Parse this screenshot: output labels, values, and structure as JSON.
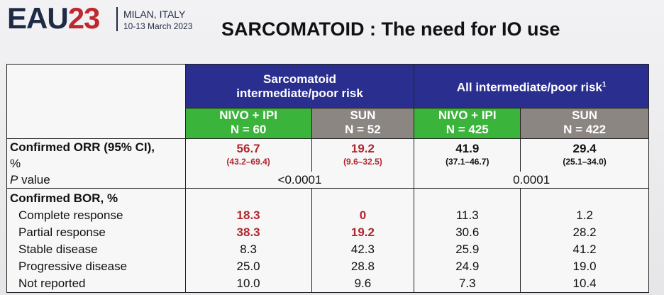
{
  "header": {
    "logo_text": "EAU",
    "logo_year": "23",
    "location": "MILAN, ITALY",
    "dates": "10-13 March 2023",
    "title": "SARCOMATOID : The need for IO use"
  },
  "table": {
    "group1": {
      "line1": "Sarcomatoid",
      "line2": "intermediate/poor risk"
    },
    "group2": {
      "label": "All intermediate/poor risk",
      "sup": "1"
    },
    "arms": [
      {
        "name": "NIVO + IPI",
        "n": "N = 60"
      },
      {
        "name": "SUN",
        "n": "N = 52"
      },
      {
        "name": "NIVO + IPI",
        "n": "N = 425"
      },
      {
        "name": "SUN",
        "n": "N = 422"
      }
    ],
    "orr": {
      "label_line1": "Confirmed ORR (95% CI),",
      "label_line2": "%",
      "values": [
        {
          "v": "56.7",
          "ci": "(43.2–69.4)"
        },
        {
          "v": "19.2",
          "ci": "(9.6–32.5)"
        },
        {
          "v": "41.9",
          "ci": "(37.1–46.7)"
        },
        {
          "v": "29.4",
          "ci": "(25.1–34.0)"
        }
      ]
    },
    "pvalue": {
      "label_p": "P",
      "label_rest": " value",
      "sarc": "<0.0001",
      "all": "0.0001"
    },
    "bor": {
      "label": "Confirmed BOR, %",
      "rows": [
        {
          "label": "Complete response",
          "values": [
            "18.3",
            "0",
            "11.3",
            "1.2"
          ]
        },
        {
          "label": "Partial response",
          "values": [
            "38.3",
            "19.2",
            "30.6",
            "28.2"
          ]
        },
        {
          "label": "Stable disease",
          "values": [
            "8.3",
            "42.3",
            "25.9",
            "41.2"
          ]
        },
        {
          "label": "Progressive disease",
          "values": [
            "25.0",
            "28.8",
            "24.9",
            "19.0"
          ]
        },
        {
          "label": "Not reported",
          "values": [
            "10.0",
            "9.6",
            "7.3",
            "10.4"
          ]
        }
      ]
    },
    "colors": {
      "header_blue": "#2a2f8f",
      "nivo_green": "#3bb43c",
      "sun_gray": "#8c8683",
      "highlight_red": "#b0262c"
    }
  }
}
